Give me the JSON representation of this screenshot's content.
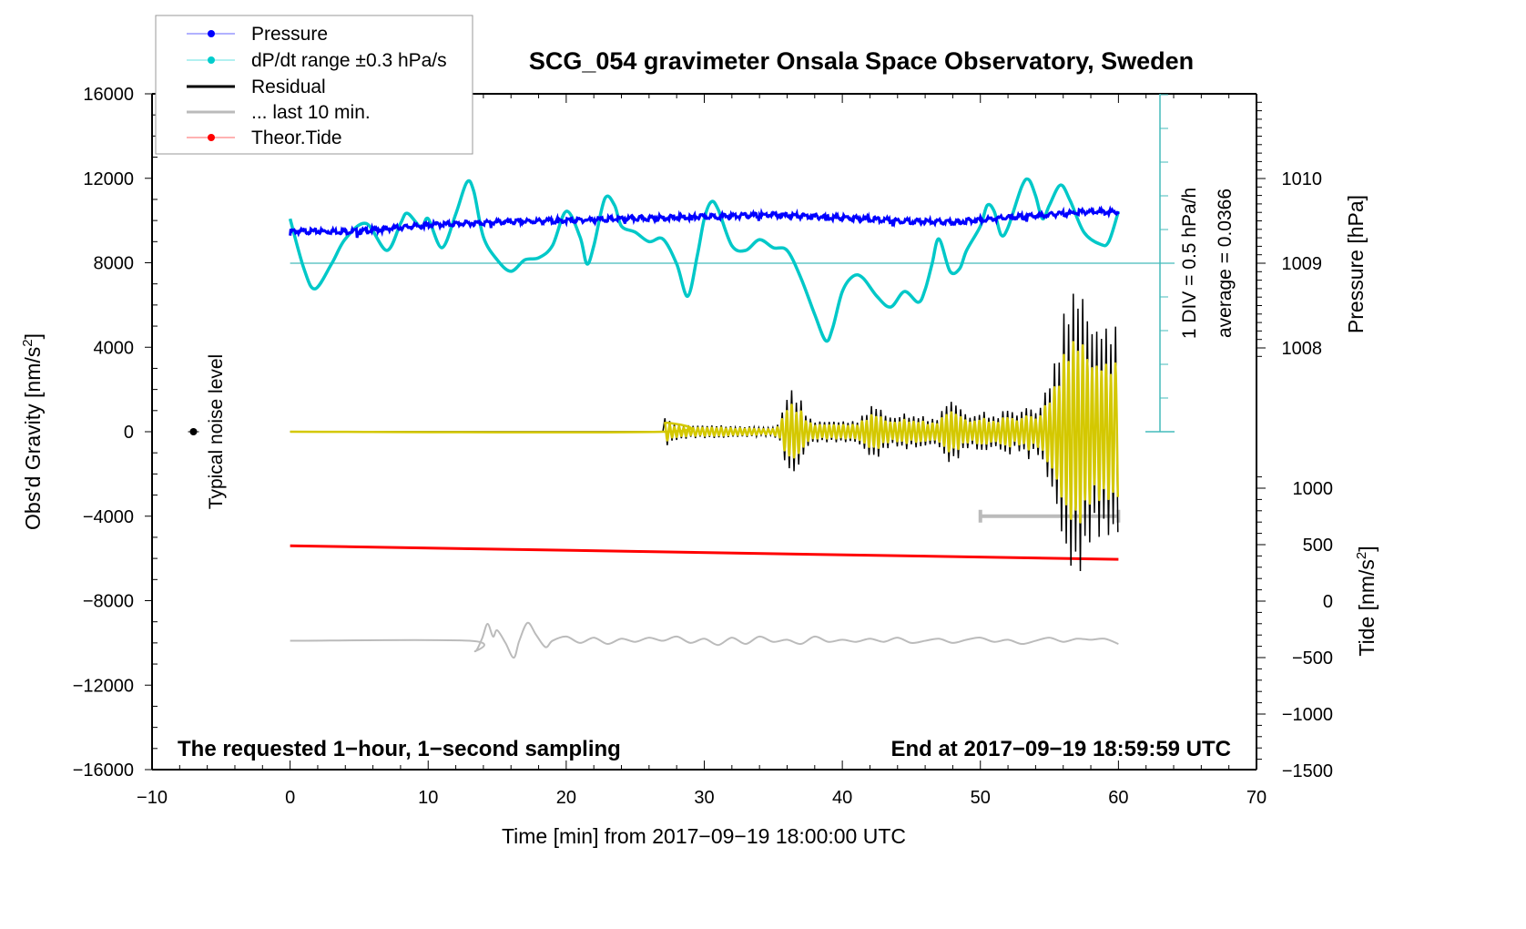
{
  "chart_data": {
    "type": "line",
    "title": "SCG_054 gravimeter Onsala Space Observatory, Sweden",
    "xlabel": "Time [min] from 2017−09−19 18:00:00 UTC",
    "ylabel": "Obs'd Gravity [nm/s",
    "ylabel_sup": "2",
    "ylabel_end": "]",
    "y2label": "Pressure [hPa]",
    "y3label": "Tide [nm/s",
    "y3label_sup": "2",
    "y3label_end": "]",
    "xlim": [
      -10,
      70
    ],
    "ylim": [
      -16000,
      16000
    ],
    "pressure_lim": [
      1006,
      1010.9
    ],
    "tide_lim": [
      -1500,
      1000
    ],
    "x_ticks": [
      "−10",
      "0",
      "10",
      "20",
      "30",
      "40",
      "50",
      "60",
      "70"
    ],
    "x_tick_values": [
      -10,
      0,
      10,
      20,
      30,
      40,
      50,
      60,
      70
    ],
    "y_ticks": [
      "16000",
      "12000",
      "8000",
      "4000",
      "0",
      "−4000",
      "−8000",
      "−12000",
      "−16000"
    ],
    "y_tick_values": [
      16000,
      12000,
      8000,
      4000,
      0,
      -4000,
      -8000,
      -12000,
      -16000
    ],
    "pressure_ticks": [
      "1010",
      "1009",
      "1008"
    ],
    "pressure_tick_values": [
      1010,
      1009,
      1008
    ],
    "tide_ticks": [
      "1000",
      "500",
      "0",
      "−500",
      "−1000",
      "−1500"
    ],
    "tide_tick_values": [
      1000,
      500,
      0,
      -500,
      -1000,
      -1500
    ],
    "legend": {
      "placement": "top-left",
      "items": [
        {
          "label": "Pressure",
          "color": "#0000ff",
          "marker": true
        },
        {
          "label": "dP/dt range ±0.3 hPa/s",
          "color": "#00cccc",
          "marker": true
        },
        {
          "label": "Residual",
          "color": "#000000",
          "marker": false
        },
        {
          "label": "... last 10 min.",
          "color": "#bbbbbb",
          "marker": false
        },
        {
          "label": "Theor.Tide",
          "color": "#ff0000",
          "marker": true
        }
      ]
    },
    "annotations": {
      "sampling": "The requested 1−hour, 1−second sampling",
      "end": "End at 2017−09−19 18:59:59 UTC",
      "noise": "Typical noise level",
      "div": "1 DIV = 0.5 hPa/h",
      "average": "average = 0.0366"
    },
    "noise_level": {
      "x": -7,
      "y": 0,
      "err": 150
    },
    "dpdt_div_hPa_per_h": 0.5,
    "dpdt_zero_pressure": 1009,
    "series": [
      {
        "name": "Pressure",
        "color": "#0000ff",
        "unit": "hPa",
        "x": [
          0,
          5,
          10,
          15,
          20,
          25,
          30,
          35,
          40,
          45,
          48,
          50,
          55,
          58,
          60
        ],
        "values": [
          1009.376,
          1009.376,
          1009.452,
          1009.484,
          1009.505,
          1009.527,
          1009.548,
          1009.57,
          1009.538,
          1009.495,
          1009.484,
          1009.516,
          1009.57,
          1009.613,
          1009.602
        ]
      },
      {
        "name": "dP/dt",
        "color": "#00c8c8",
        "unit": "hPa/h",
        "x": [
          0,
          1,
          1.8,
          3,
          4,
          5.5,
          7,
          8,
          8.5,
          9.5,
          10,
          11,
          12,
          12.8,
          13.3,
          14,
          15,
          16,
          17,
          18,
          19,
          20,
          21,
          21.5,
          22,
          22.8,
          23.5,
          24,
          25,
          26,
          27,
          28,
          28.8,
          29.5,
          30,
          30.5,
          31,
          32,
          33,
          34,
          35,
          36,
          37,
          38,
          38.8,
          39.3,
          40,
          40.8,
          41.5,
          42.5,
          43.5,
          44.5,
          45.5,
          46,
          46.5,
          47,
          47.8,
          48.5,
          49,
          50,
          50.5,
          51,
          51.5,
          52,
          53,
          53.5,
          54,
          54.5,
          55,
          55.8,
          56.5,
          57.5,
          58.7,
          59.3,
          60
        ],
        "values": [
          0.66,
          -0.08,
          -0.38,
          -0.01,
          0.36,
          0.59,
          0.19,
          0.59,
          0.74,
          0.53,
          0.66,
          0.23,
          0.73,
          1.2,
          1.07,
          0.39,
          0.05,
          -0.12,
          0.05,
          0.08,
          0.26,
          0.77,
          0.39,
          -0.01,
          0.26,
          0.96,
          0.86,
          0.55,
          0.46,
          0.32,
          0.36,
          -0.01,
          -0.49,
          0.12,
          0.66,
          0.91,
          0.8,
          0.26,
          0.19,
          0.35,
          0.23,
          0.19,
          -0.22,
          -0.76,
          -1.15,
          -0.96,
          -0.42,
          -0.19,
          -0.22,
          -0.49,
          -0.65,
          -0.42,
          -0.58,
          -0.39,
          -0.01,
          0.36,
          -0.12,
          -0.08,
          0.19,
          0.55,
          0.86,
          0.77,
          0.42,
          0.53,
          1.14,
          1.24,
          1.0,
          0.66,
          0.86,
          1.16,
          0.93,
          0.46,
          0.28,
          0.32,
          0.77
        ]
      },
      {
        "name": "Residual",
        "color": "#000000",
        "unit": "nm/s2",
        "note": "oscillation amplitude envelope (nm/s2) from t=27 min every 0.5 min; zero before 27 min",
        "start": 27,
        "step": 0.5,
        "amplitude": [
          1000,
          500,
          400,
          350,
          300,
          300,
          300,
          300,
          300,
          300,
          250,
          250,
          250,
          250,
          200,
          200,
          200,
          500,
          1900,
          2000,
          1500,
          700,
          500,
          500,
          500,
          500,
          500,
          500,
          500,
          800,
          1200,
          1300,
          900,
          700,
          700,
          900,
          700,
          800,
          700,
          600,
          700,
          1400,
          1500,
          1200,
          800,
          700,
          1000,
          900,
          700,
          900,
          1200,
          800,
          1000,
          1300,
          900,
          1500,
          2500,
          3500,
          5500,
          6500,
          6800,
          6500,
          5000
        ]
      },
      {
        "name": "Residual (filtered)",
        "color": "#d4c800",
        "unit": "nm/s2",
        "ratio_to_residual": 0.65
      },
      {
        "name": "... last 10 min.",
        "color": "#bbbbbb",
        "unit": "nm/s2",
        "x": [
          0,
          13,
          13.4,
          13.9,
          14.3,
          14.7,
          15,
          15.6,
          16.2,
          16.6,
          17.2,
          17.8,
          18.5,
          19,
          20,
          21,
          22,
          23,
          24,
          25,
          26,
          27,
          28,
          29,
          30,
          31,
          32,
          33,
          34,
          35,
          36,
          37,
          38,
          39,
          40,
          41,
          42,
          43,
          44,
          45,
          46,
          47,
          48,
          49,
          50,
          51,
          52,
          53,
          54,
          55,
          56,
          57,
          58,
          59,
          60
        ],
        "values": [
          -9900,
          -9900,
          -10400,
          -9800,
          -9100,
          -9700,
          -9400,
          -10000,
          -10700,
          -9900,
          -9050,
          -9600,
          -10200,
          -9900,
          -9700,
          -10000,
          -9750,
          -10050,
          -9800,
          -9950,
          -9750,
          -9900,
          -9700,
          -10000,
          -9800,
          -10100,
          -9750,
          -10050,
          -9700,
          -9950,
          -9850,
          -10050,
          -9700,
          -9950,
          -9850,
          -9950,
          -9800,
          -9950,
          -9750,
          -10000,
          -9900,
          -9800,
          -10000,
          -9850,
          -9750,
          -9950,
          -9850,
          -10050,
          -9900,
          -9750,
          -9950,
          -9800,
          -9850,
          -9800,
          -10050
        ]
      },
      {
        "name": "last 10 min bar",
        "color": "#bbbbbb",
        "x": [
          50,
          60
        ],
        "values": [
          -4000,
          -4000
        ]
      },
      {
        "name": "Theor.Tide",
        "color": "#ff0000",
        "unit": "nm/s2 (tide axis)",
        "x": [
          0,
          60
        ],
        "values": [
          490,
          370
        ]
      }
    ]
  }
}
